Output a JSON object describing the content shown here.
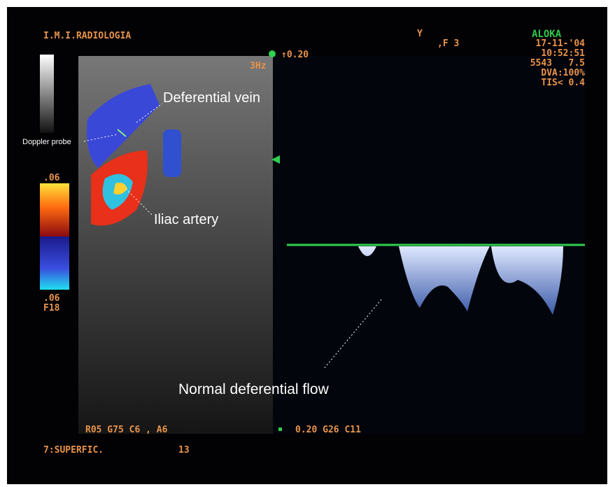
{
  "header": {
    "institution": "I.M.I.RADIOLOGIA",
    "brand": "ALOKA",
    "marker": "Y",
    "frame": ",F 3",
    "date": "17-11-'04",
    "time": "10:52:51",
    "probe": "5543   7.5",
    "dva": "DVA:100%",
    "tis": "TIS< 0.4"
  },
  "doppler": {
    "prf": "3Hz",
    "scale": "↑0.20"
  },
  "color_scale": {
    "top": ".06",
    "bottom": ".06",
    "frequency": "F18"
  },
  "annotations": {
    "vein": "Deferential vein",
    "probe": "Doppler probe",
    "artery": "Iliac artery",
    "flow": "Normal deferential flow"
  },
  "footer": {
    "color_settings": "R05 G75 C6 , A6",
    "spectral_settings": "0.20 G26 C11",
    "preset": "7:SUPERFIC.",
    "depth": "13"
  }
}
